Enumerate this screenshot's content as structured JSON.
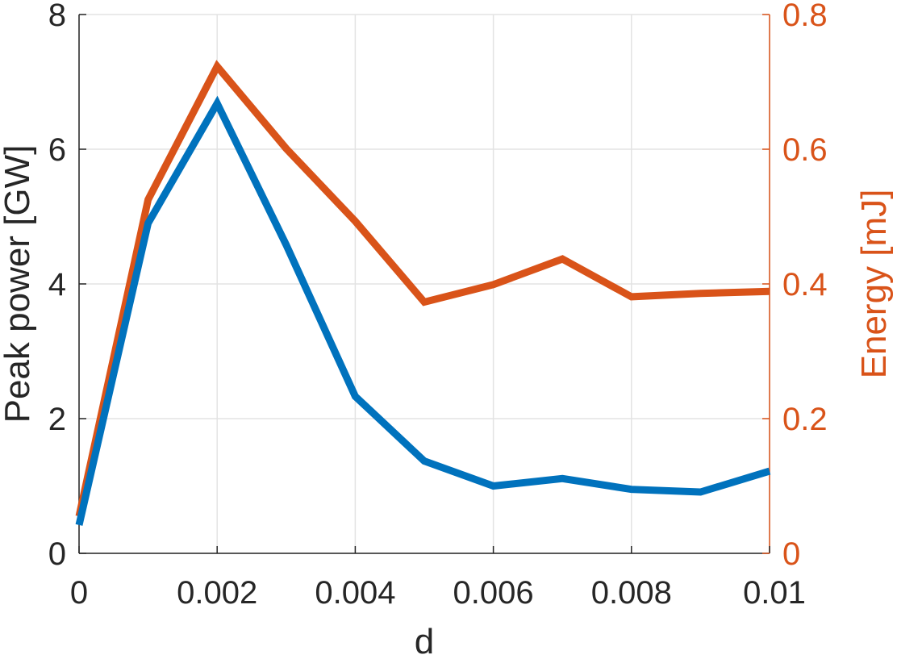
{
  "chart_data": {
    "type": "line",
    "title": "",
    "xlabel": "d",
    "ylabel_left": "Peak power [GW]",
    "ylabel_right": "Energy [mJ]",
    "xlim": [
      0,
      0.01
    ],
    "ylim_left": [
      0,
      8
    ],
    "ylim_right": [
      0,
      0.8
    ],
    "grid": true,
    "x_ticks": [
      "0",
      "0.002",
      "0.004",
      "0.006",
      "0.008",
      "0.01"
    ],
    "y_ticks_left": [
      "0",
      "2",
      "4",
      "6",
      "8"
    ],
    "y_ticks_right": [
      "0",
      "0.2",
      "0.4",
      "0.6",
      "0.8"
    ],
    "x": [
      0,
      0.001,
      0.002,
      0.003,
      0.004,
      0.005,
      0.006,
      0.007,
      0.008,
      0.009,
      0.01
    ],
    "series": [
      {
        "axis": "left",
        "color": "#0072BD",
        "values": [
          0.42,
          4.9,
          6.68,
          4.58,
          2.33,
          1.37,
          1.0,
          1.11,
          0.95,
          0.91,
          1.22
        ]
      },
      {
        "axis": "right",
        "color": "#D95319",
        "values": [
          0.055,
          0.525,
          0.723,
          0.601,
          0.493,
          0.373,
          0.399,
          0.437,
          0.381,
          0.386,
          0.389
        ]
      }
    ],
    "left_axis_color": "#262626",
    "right_axis_color": "#D95319"
  }
}
